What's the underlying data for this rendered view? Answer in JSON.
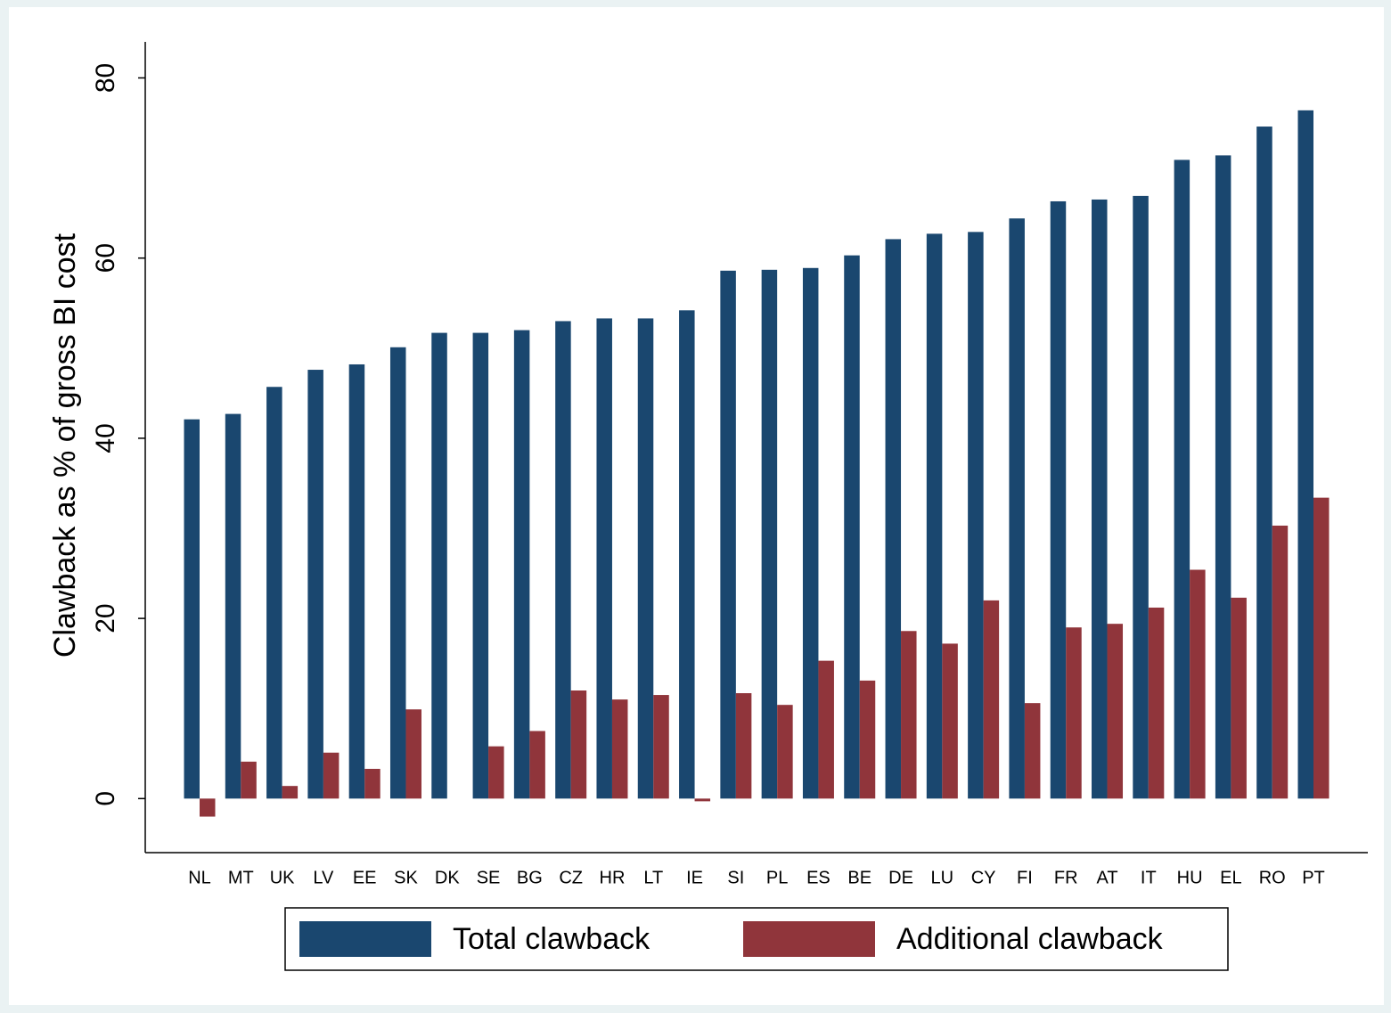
{
  "chart_data": {
    "type": "bar",
    "y_label": "Clawback as % of gross BI cost",
    "categories": [
      "NL",
      "MT",
      "UK",
      "LV",
      "EE",
      "SK",
      "DK",
      "SE",
      "BG",
      "CZ",
      "HR",
      "LT",
      "IE",
      "SI",
      "PL",
      "ES",
      "BE",
      "DE",
      "LU",
      "CY",
      "FI",
      "FR",
      "AT",
      "IT",
      "HU",
      "EL",
      "RO",
      "PT"
    ],
    "series": [
      {
        "name": "Total clawback",
        "color": "#1a476f",
        "values": [
          42.1,
          42.7,
          45.7,
          47.6,
          48.2,
          50.1,
          51.7,
          51.7,
          52.0,
          53.0,
          53.3,
          53.3,
          54.2,
          58.6,
          58.7,
          58.9,
          60.3,
          62.1,
          62.7,
          62.9,
          64.4,
          66.3,
          66.5,
          66.9,
          70.9,
          71.4,
          74.6,
          76.4
        ]
      },
      {
        "name": "Additional clawback",
        "color": "#90353b",
        "values": [
          -2.0,
          4.1,
          1.4,
          5.1,
          3.3,
          9.9,
          0,
          5.8,
          7.5,
          12.0,
          11.0,
          11.5,
          -0.3,
          11.7,
          10.4,
          15.3,
          13.1,
          18.6,
          17.2,
          22.0,
          10.6,
          19.0,
          19.4,
          21.2,
          25.4,
          22.3,
          30.3,
          33.4
        ]
      }
    ],
    "ylim": [
      -6,
      84
    ],
    "yticks": [
      0,
      20,
      40,
      60,
      80
    ],
    "grid": false,
    "legend": "bottom"
  }
}
